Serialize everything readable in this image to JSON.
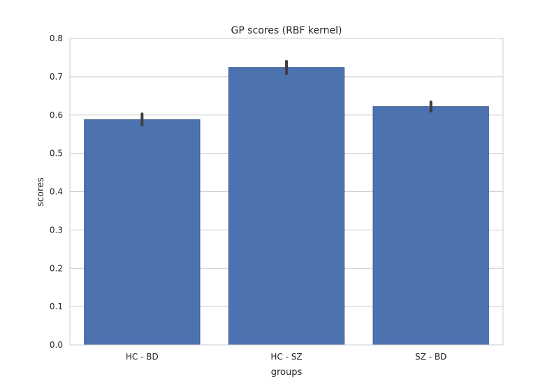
{
  "chart_data": {
    "type": "bar",
    "title": "GP scores (RBF kernel)",
    "xlabel": "groups",
    "ylabel": "scores",
    "categories": [
      "HC - BD",
      "HC - SZ",
      "SZ - BD"
    ],
    "values": [
      0.588,
      0.724,
      0.622
    ],
    "error_low": [
      0.574,
      0.708,
      0.61
    ],
    "error_high": [
      0.603,
      0.74,
      0.634
    ],
    "ylim": [
      0.0,
      0.8
    ],
    "yticks": [
      "0.0",
      "0.1",
      "0.2",
      "0.3",
      "0.4",
      "0.5",
      "0.6",
      "0.7",
      "0.8"
    ],
    "grid": "horizontal",
    "colors": {
      "bar": "#4c72b0",
      "bar_edge": "#3a5a8f",
      "error": "#3f3f3f",
      "grid": "#cccccc",
      "frame": "#cccccc"
    }
  }
}
